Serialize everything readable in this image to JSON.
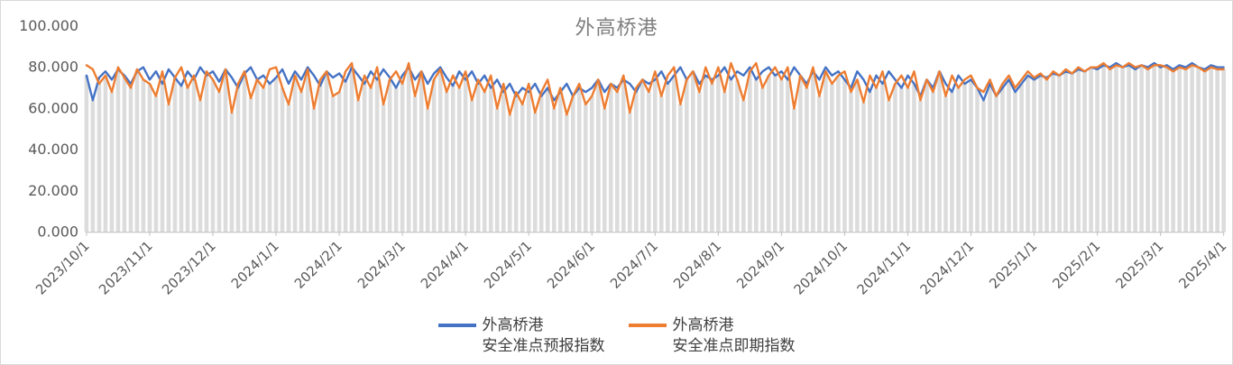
{
  "chart_data": {
    "type": "line",
    "title": "外高桥港",
    "xlabel": "",
    "ylabel": "",
    "ylim": [
      0,
      100
    ],
    "grid": "off",
    "legend_position": "bottom",
    "axis_color": "#BFBFBF",
    "label_color": "#595959",
    "title_color": "#7F7F7F",
    "bars": {
      "color": "#DCDCDC",
      "derive": "min_of_series"
    },
    "y_tick_labels": [
      {
        "value": 0,
        "label": "0.000"
      },
      {
        "value": 20,
        "label": "20.000"
      },
      {
        "value": 40,
        "label": "40.000"
      },
      {
        "value": 60,
        "label": "60.000"
      },
      {
        "value": 80,
        "label": "80.000"
      },
      {
        "value": 100,
        "label": "100.000"
      }
    ],
    "x_tick_labels": [
      "2023/10/1",
      "2023/11/1",
      "2023/12/1",
      "2024/1/1",
      "2024/2/1",
      "2024/3/1",
      "2024/4/1",
      "2024/5/1",
      "2024/6/1",
      "2024/7/1",
      "2024/8/1",
      "2024/9/1",
      "2024/10/1",
      "2024/11/1",
      "2024/12/1",
      "2025/1/1",
      "2025/2/1",
      "2025/3/1",
      "2025/4/1"
    ],
    "points_per_month": 10,
    "series": [
      {
        "name": "外高桥港安全准点预报指数",
        "color": "#4472C4",
        "values": [
          76,
          64,
          75,
          78,
          74,
          79,
          76,
          72,
          78,
          80,
          74,
          78,
          72,
          79,
          75,
          71,
          78,
          74,
          80,
          76,
          78,
          73,
          79,
          75,
          70,
          77,
          80,
          74,
          76,
          72,
          75,
          79,
          72,
          78,
          74,
          80,
          76,
          71,
          78,
          75,
          77,
          73,
          80,
          76,
          72,
          78,
          74,
          79,
          75,
          70,
          76,
          80,
          74,
          78,
          72,
          77,
          80,
          75,
          71,
          78,
          74,
          78,
          72,
          76,
          70,
          74,
          68,
          72,
          66,
          70,
          68,
          72,
          66,
          70,
          64,
          68,
          72,
          66,
          70,
          68,
          70,
          74,
          68,
          72,
          70,
          74,
          72,
          68,
          74,
          72,
          74,
          78,
          72,
          76,
          80,
          74,
          78,
          72,
          76,
          74,
          76,
          80,
          74,
          78,
          76,
          80,
          74,
          78,
          80,
          76,
          78,
          74,
          80,
          76,
          72,
          78,
          74,
          80,
          76,
          78,
          74,
          70,
          78,
          74,
          68,
          76,
          72,
          78,
          74,
          70,
          76,
          72,
          66,
          74,
          70,
          78,
          72,
          68,
          76,
          72,
          74,
          70,
          64,
          72,
          66,
          70,
          74,
          68,
          72,
          76,
          74,
          76,
          75,
          77,
          76,
          78,
          77,
          79,
          78,
          80,
          79,
          81,
          80,
          82,
          80,
          81,
          79,
          81,
          80,
          82,
          80,
          81,
          79,
          81,
          80,
          82,
          80,
          79,
          81,
          80,
          80
        ]
      },
      {
        "name": "外高桥港安全准点即期指数",
        "color": "#ED7D31",
        "values": [
          81,
          79,
          72,
          76,
          68,
          80,
          75,
          70,
          79,
          74,
          72,
          66,
          78,
          62,
          75,
          80,
          70,
          76,
          64,
          78,
          74,
          68,
          79,
          58,
          72,
          78,
          65,
          74,
          70,
          79,
          80,
          70,
          62,
          76,
          68,
          79,
          60,
          74,
          78,
          66,
          68,
          78,
          82,
          64,
          76,
          70,
          80,
          62,
          74,
          78,
          72,
          82,
          66,
          78,
          60,
          74,
          79,
          68,
          76,
          70,
          78,
          64,
          74,
          68,
          76,
          60,
          72,
          57,
          68,
          62,
          72,
          58,
          68,
          74,
          60,
          70,
          57,
          66,
          72,
          62,
          66,
          74,
          60,
          72,
          68,
          76,
          58,
          70,
          74,
          68,
          78,
          66,
          76,
          80,
          62,
          74,
          78,
          68,
          80,
          72,
          80,
          68,
          82,
          74,
          64,
          78,
          82,
          70,
          76,
          80,
          74,
          80,
          60,
          76,
          70,
          80,
          66,
          78,
          72,
          76,
          78,
          68,
          74,
          63,
          76,
          70,
          78,
          64,
          72,
          76,
          70,
          78,
          64,
          74,
          68,
          78,
          66,
          76,
          70,
          74,
          76,
          70,
          68,
          74,
          66,
          72,
          76,
          70,
          74,
          78,
          75,
          77,
          74,
          78,
          76,
          79,
          77,
          80,
          78,
          80,
          80,
          82,
          79,
          81,
          80,
          82,
          80,
          81,
          79,
          81,
          81,
          80,
          78,
          80,
          79,
          81,
          80,
          78,
          80,
          79,
          79
        ]
      }
    ],
    "legend": [
      {
        "line1": "外高桥港",
        "line2": "安全准点预报指数",
        "color": "#4472C4"
      },
      {
        "line1": "外高桥港",
        "line2": "安全准点即期指数",
        "color": "#ED7D31"
      }
    ]
  }
}
